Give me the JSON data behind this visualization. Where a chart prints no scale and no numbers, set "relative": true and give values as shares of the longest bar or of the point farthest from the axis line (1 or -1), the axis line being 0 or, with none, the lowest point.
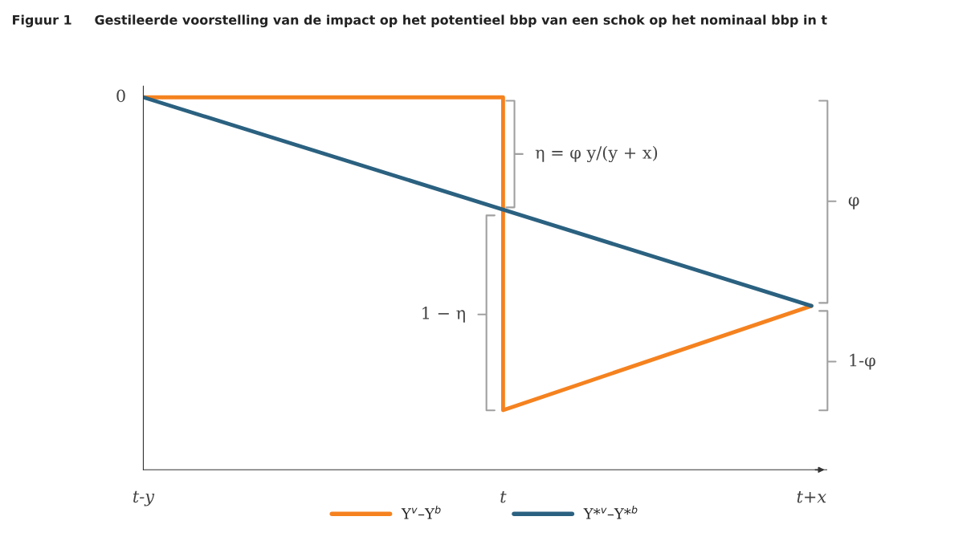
{
  "chart_data": {
    "type": "line",
    "relative": true,
    "title": "Figuur 1     Gestileerde voorstelling van de impact op het potentieel bbp van een schok op het nominaal bbp in t",
    "categories": [
      "t-y",
      null,
      null,
      null,
      null,
      null,
      null,
      "t",
      null,
      null,
      null,
      null,
      null,
      "t+x"
    ],
    "series": [
      {
        "name": "Y$^{v}$–Y$^{b}$",
        "color": "#f5821f",
        "x": [
          "t-y",
          "t",
          "t",
          "t+x"
        ],
        "values": [
          1,
          1,
          0.16,
          0.44
        ]
      },
      {
        "name": "Y*$^{v}$–Y*$^{b}$",
        "color": "#2b6180",
        "x": [
          "t-y",
          "t+x"
        ],
        "values": [
          1,
          0.44
        ]
      }
    ],
    "annotations": [
      "0",
      "η = φ y/(y + x)",
      "1 − η",
      "φ",
      "1-φ"
    ],
    "legend": "bottom",
    "marker": "none",
    "line_style": "solid"
  }
}
